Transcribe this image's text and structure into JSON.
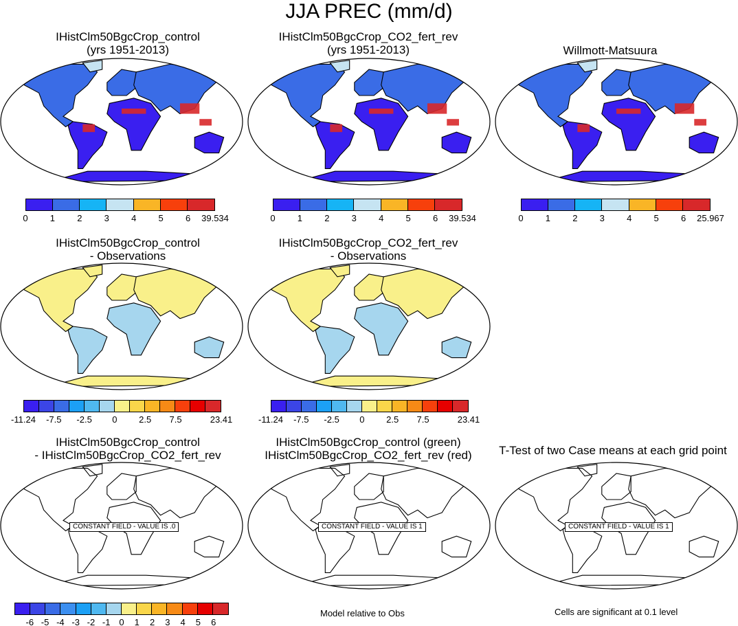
{
  "figure_title": "JJA PREC (mm/d)",
  "panels": [
    {
      "title": [
        "IHistClm50BgcCrop_control",
        "(yrs 1951-2013)"
      ],
      "style": "mean"
    },
    {
      "title": [
        "IHistClm50BgcCrop_CO2_fert_rev",
        "(yrs 1951-2013)"
      ],
      "style": "mean"
    },
    {
      "title": [
        "Willmott-Matsuura"
      ],
      "style": "mean"
    },
    {
      "title": [
        "IHistClm50BgcCrop_control",
        "- Observations"
      ],
      "style": "diff"
    },
    {
      "title": [
        "IHistClm50BgcCrop_CO2_fert_rev",
        "- Observations"
      ],
      "style": "diff"
    },
    {
      "title": [
        "IHistClm50BgcCrop_control",
        "- IHistClm50BgcCrop_CO2_fert_rev"
      ],
      "style": "blank",
      "box": "CONSTANT FIELD - VALUE IS .0"
    },
    {
      "title": [
        "IHistClm50BgcCrop_control (green)",
        "IHistClm50BgcCrop_CO2_fert_rev (red)"
      ],
      "style": "blank",
      "box": "CONSTANT FIELD - VALUE IS 1"
    },
    {
      "title": [
        "T-Test of two Case means at each grid point"
      ],
      "style": "blank",
      "box": "CONSTANT FIELD - VALUE IS 1"
    }
  ],
  "colorbars": {
    "mean": {
      "colors": [
        "#3a1ff0",
        "#3a6ce6",
        "#16b4f5",
        "#c6e4f2",
        "#f9b526",
        "#f7400c",
        "#d8282a"
      ],
      "labels_1": [
        "0",
        "1",
        "2",
        "3",
        "4",
        "5",
        "6",
        "39.534"
      ],
      "labels_2": [
        "0",
        "1",
        "2",
        "3",
        "4",
        "5",
        "6",
        "39.534"
      ],
      "labels_3": [
        "0",
        "1",
        "2",
        "3",
        "4",
        "5",
        "6",
        "25.967"
      ]
    },
    "diff": {
      "colors": [
        "#3a1ff0",
        "#3b45e6",
        "#3a6ce6",
        "#1ca0f5",
        "#4fb8f0",
        "#a6d6ee",
        "#f9f08a",
        "#f9d64a",
        "#f9b526",
        "#f78a16",
        "#f7400c",
        "#e60000",
        "#d8282a"
      ],
      "labels": [
        "-11.24",
        "-7.5",
        "-2.5",
        "0",
        "2.5",
        "7.5",
        "23.41"
      ]
    },
    "bottom": {
      "colors": [
        "#3a1ff0",
        "#3b45e6",
        "#3a6ce6",
        "#3c8ff0",
        "#1ca0f5",
        "#4fb8f0",
        "#a6d6ee",
        "#f9f08a",
        "#f9d64a",
        "#f9b526",
        "#f78a16",
        "#f7400c",
        "#e60000",
        "#d8282a"
      ],
      "labels": [
        "-6",
        "-5",
        "-4",
        "-3",
        "-2",
        "-1",
        "0",
        "1",
        "2",
        "3",
        "4",
        "5",
        "6"
      ]
    }
  },
  "notes": {
    "model_relative": "Model relative to Obs",
    "significance": "Cells are significant at 0.1 level"
  },
  "map_colors": {
    "ocean": "#ffffff",
    "outline": "#000000",
    "mean_low": "#3a1ff0",
    "mean_mid": "#3a6ce6",
    "mean_light": "#c6e4f2",
    "mean_high": "#d8282a",
    "diff_base": "#a6d6ee",
    "diff_pos": "#f9f08a"
  }
}
